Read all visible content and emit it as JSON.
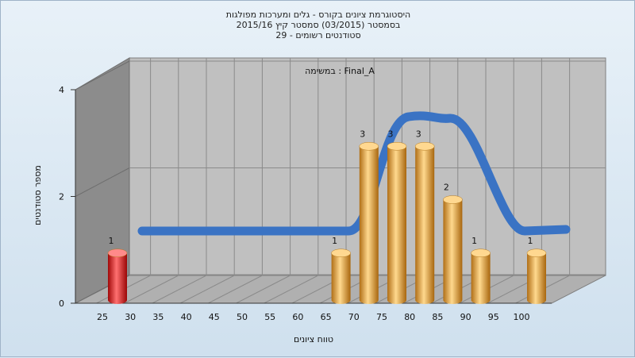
{
  "title_lines": [
    "היסטוגרמת ציונים בקורס - גלים ומערכות מפולגות",
    "בסמסטר  (03/2015)  סמסטר קיץ 2015/16",
    "סטודנטים רשומים - 29"
  ],
  "chart_data": {
    "type": "bar",
    "annotation": "במשימה : Final_A",
    "xlabel": "טווח ציונים",
    "ylabel": "מספר סטודנטים",
    "categories": [
      "25",
      "30",
      "35",
      "40",
      "45",
      "50",
      "55",
      "60",
      "65",
      "70",
      "75",
      "80",
      "85",
      "90",
      "95",
      "100"
    ],
    "values": [
      1,
      0,
      0,
      0,
      0,
      0,
      0,
      0,
      1,
      3,
      3,
      3,
      2,
      1,
      0,
      1
    ],
    "data_labels": [
      "1",
      "",
      "",
      "",
      "",
      "",
      "",
      "",
      "1",
      "3",
      "3",
      "3",
      "2",
      "1",
      "",
      "1"
    ],
    "ylim": [
      0,
      4
    ],
    "yticks": [
      "0",
      "2",
      "4"
    ],
    "highlight_color": "#e02020",
    "bar_color": "#e9a84a",
    "curve_color": "#3a73c4",
    "grid": true
  }
}
